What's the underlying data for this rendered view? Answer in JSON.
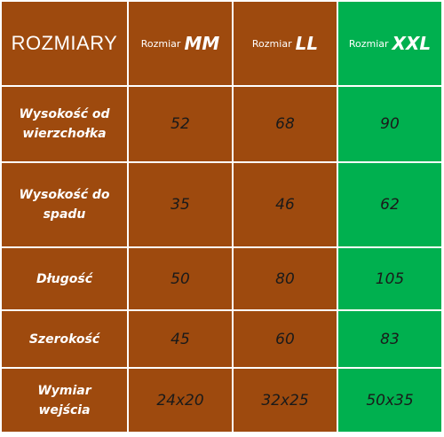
{
  "table": {
    "corner": "ROZMIARY",
    "columns": [
      {
        "prefix": "Rozmiar",
        "size": "MM"
      },
      {
        "prefix": "Rozmiar",
        "size": "LL"
      },
      {
        "prefix": "Rozmiar",
        "size": "XXL"
      }
    ],
    "rows": [
      {
        "label": "Wysokość od wierzchołka",
        "values": [
          "52",
          "68",
          "90"
        ]
      },
      {
        "label": "Wysokość do spadu",
        "values": [
          "35",
          "46",
          "62"
        ]
      },
      {
        "label": "Długość",
        "values": [
          "50",
          "80",
          "105"
        ]
      },
      {
        "label": "Szerokość",
        "values": [
          "45",
          "60",
          "83"
        ]
      },
      {
        "label": "Wymiar wejścia",
        "values": [
          "24x20",
          "32x25",
          "50x35"
        ]
      }
    ]
  },
  "colors": {
    "brown": "#9e4a0e",
    "green": "#00b04f",
    "text_light": "#ffffff",
    "text_dark": "#1a1a1a"
  }
}
